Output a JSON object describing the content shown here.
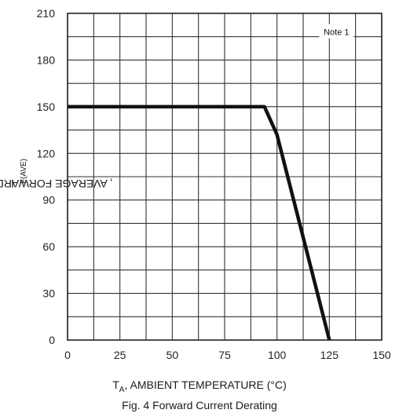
{
  "chart_data": {
    "type": "line",
    "title": "",
    "caption": "Fig. 4  Forward Current Derating",
    "xlabel": "T_A, AMBIENT TEMPERATURE (°C)",
    "xlabel_parts": {
      "main": "T",
      "sub": "A",
      "rest": ", AMBIENT TEMPERATURE (°C)"
    },
    "ylabel": "I_F(AVE), AVERAGE FORWARD CURRENT (mA)",
    "ylabel_parts": {
      "main": "I",
      "sub": "F(AVE)",
      "rest": ", AVERAGE FORWARD CURRENT (mA)"
    },
    "xlim": [
      0,
      150
    ],
    "ylim": [
      0,
      210
    ],
    "x_ticks": [
      0,
      25,
      50,
      75,
      100,
      125,
      150
    ],
    "y_ticks": [
      0,
      30,
      60,
      90,
      120,
      150,
      180,
      210
    ],
    "x_minor_step": 12.5,
    "y_minor_step": 15,
    "grid": true,
    "annotation": "Note 1",
    "series": [
      {
        "x": [
          0,
          94,
          100,
          125
        ],
        "y": [
          150,
          150,
          132,
          0
        ]
      }
    ]
  }
}
